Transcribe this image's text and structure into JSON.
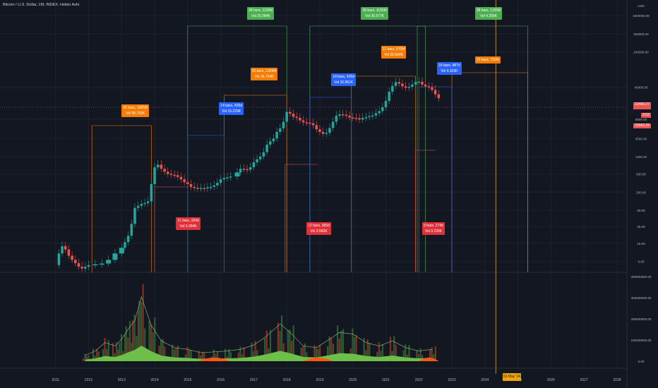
{
  "title": "Bitcoin / U.S. Dollar, 1M, INDEX, Heikin Ashi",
  "colors": {
    "bg": "#131722",
    "grid": "#1e222d",
    "up": "#26a69a",
    "down": "#ef5350",
    "green_box": "#4caf50",
    "red_box": "#e0313b",
    "blue_box": "#2962ff",
    "orange_box": "#f57c00",
    "vol_up": "#2e5a33",
    "vol_down": "#8a2c20",
    "vol_area_green": "#6dbf4a",
    "vol_area_orange": "#ff5a12",
    "cursor": "#d4a43a"
  },
  "axis": {
    "price_unit": "USD",
    "price_ticks": [
      "1500000.00",
      "600000.00",
      "240000.00",
      "40000.00",
      "8000.00",
      "3000.00",
      "1200.00",
      "500.00",
      "200.00",
      "80.00",
      "35.00",
      "15.00",
      "6.00"
    ],
    "price_labels": {
      "current": "BTCUSD",
      "value1": "22400.27",
      "value2": "2:03",
      "value3": "33563.25"
    },
    "volume_ticks": [
      "400000000.00",
      "300000000.00",
      "200000000.00",
      "100000000.00",
      "0.00"
    ],
    "x_ticks": [
      "2011",
      "2012",
      "2013",
      "2014",
      "2015",
      "2016",
      "2017",
      "2018",
      "2019",
      "2020",
      "2021",
      "2022",
      "2023",
      "2024",
      "2025",
      "2026",
      "2027",
      "2028"
    ],
    "cursor_date": "01 May '24"
  },
  "annotations": [
    {
      "kind": "cycle",
      "lines": [
        "38 bars, 1155M",
        "Vol 25.084K"
      ]
    },
    {
      "kind": "cycle",
      "lines": [
        "38 bars, 1155M",
        "Vol 36.677K"
      ]
    },
    {
      "kind": "cycle",
      "lines": [
        "38 bars, 1155M",
        "Vol 4.256K"
      ]
    },
    {
      "kind": "bull",
      "lines": [
        "35 bars, 1065M",
        "Vol 58.732K"
      ]
    },
    {
      "kind": "bull",
      "lines": [
        "33 bars, 1004M",
        "Vol 36.754K"
      ]
    },
    {
      "kind": "bull",
      "lines": [
        "22 bars, 670M",
        "Vol 28.664K"
      ]
    },
    {
      "kind": "bull",
      "lines": [
        "23 bars, 700M"
      ]
    },
    {
      "kind": "acc",
      "lines": [
        "14 bars, 426d",
        "Vol 15.229K"
      ]
    },
    {
      "kind": "acc",
      "lines": [
        "14 bars, 426d",
        "Vol 16.961K"
      ]
    },
    {
      "kind": "acc",
      "lines": [
        "16 bars, 487d",
        "Vol 4.153K"
      ]
    },
    {
      "kind": "bear",
      "lines": [
        "11 bars, 334d",
        "Vol 6.394K"
      ]
    },
    {
      "kind": "bear",
      "lines": [
        "12 bars, 365d",
        "Vol 3.583K"
      ]
    },
    {
      "kind": "bear",
      "lines": [
        "9 bars, 274d",
        "Vol 3.230K"
      ]
    }
  ],
  "chart_data": {
    "type": "line",
    "title": "Bitcoin / U.S. Dollar, 1M, INDEX, Heikin Ashi",
    "y_scale": "log",
    "ylim": [
      4,
      2000000
    ],
    "xlim": [
      2010.6,
      2028.3
    ],
    "series": [
      {
        "name": "BTCUSD",
        "values": [
          [
            2011.0,
            5
          ],
          [
            2011.1,
            9
          ],
          [
            2011.2,
            13
          ],
          [
            2011.3,
            11
          ],
          [
            2011.4,
            8
          ],
          [
            2011.5,
            6.5
          ],
          [
            2011.6,
            5.5
          ],
          [
            2011.7,
            4.6
          ],
          [
            2011.8,
            4.2
          ],
          [
            2011.9,
            4.6
          ],
          [
            2012.0,
            5
          ],
          [
            2012.2,
            5.2
          ],
          [
            2012.4,
            5.4
          ],
          [
            2012.6,
            6.5
          ],
          [
            2012.8,
            9
          ],
          [
            2013.0,
            12
          ],
          [
            2013.1,
            16
          ],
          [
            2013.2,
            22
          ],
          [
            2013.3,
            40
          ],
          [
            2013.4,
            90
          ],
          [
            2013.5,
            100
          ],
          [
            2013.6,
            110
          ],
          [
            2013.7,
            115
          ],
          [
            2013.8,
            125
          ],
          [
            2013.9,
            300
          ],
          [
            2014.0,
            700
          ],
          [
            2014.1,
            800
          ],
          [
            2014.2,
            650
          ],
          [
            2014.3,
            560
          ],
          [
            2014.4,
            500
          ],
          [
            2014.5,
            480
          ],
          [
            2014.6,
            470
          ],
          [
            2014.7,
            430
          ],
          [
            2014.8,
            380
          ],
          [
            2014.9,
            330
          ],
          [
            2015.0,
            300
          ],
          [
            2015.1,
            260
          ],
          [
            2015.2,
            250
          ],
          [
            2015.3,
            240
          ],
          [
            2015.4,
            245
          ],
          [
            2015.5,
            240
          ],
          [
            2015.6,
            255
          ],
          [
            2015.7,
            260
          ],
          [
            2015.8,
            280
          ],
          [
            2015.9,
            320
          ],
          [
            2016.0,
            380
          ],
          [
            2016.1,
            410
          ],
          [
            2016.2,
            420
          ],
          [
            2016.3,
            440
          ],
          [
            2016.5,
            540
          ],
          [
            2016.6,
            650
          ],
          [
            2016.7,
            640
          ],
          [
            2016.8,
            620
          ],
          [
            2016.9,
            700
          ],
          [
            2017.0,
            900
          ],
          [
            2017.1,
            1050
          ],
          [
            2017.2,
            1200
          ],
          [
            2017.3,
            1500
          ],
          [
            2017.4,
            2200
          ],
          [
            2017.5,
            2600
          ],
          [
            2017.6,
            3000
          ],
          [
            2017.7,
            4200
          ],
          [
            2017.8,
            5000
          ],
          [
            2017.9,
            7000
          ],
          [
            2018.0,
            11500
          ],
          [
            2018.1,
            10500
          ],
          [
            2018.2,
            9000
          ],
          [
            2018.3,
            8500
          ],
          [
            2018.4,
            7500
          ],
          [
            2018.5,
            6800
          ],
          [
            2018.6,
            6700
          ],
          [
            2018.7,
            6500
          ],
          [
            2018.8,
            5900
          ],
          [
            2018.9,
            4800
          ],
          [
            2019.0,
            4200
          ],
          [
            2019.1,
            3800
          ],
          [
            2019.2,
            4000
          ],
          [
            2019.3,
            5100
          ],
          [
            2019.4,
            7000
          ],
          [
            2019.5,
            9500
          ],
          [
            2019.6,
            10200
          ],
          [
            2019.7,
            10000
          ],
          [
            2019.8,
            9500
          ],
          [
            2019.9,
            8700
          ],
          [
            2020.0,
            8500
          ],
          [
            2020.1,
            8400
          ],
          [
            2020.2,
            7800
          ],
          [
            2020.3,
            8500
          ],
          [
            2020.4,
            8800
          ],
          [
            2020.5,
            9300
          ],
          [
            2020.6,
            9600
          ],
          [
            2020.7,
            10800
          ],
          [
            2020.8,
            12000
          ],
          [
            2020.9,
            14500
          ],
          [
            2021.0,
            20000
          ],
          [
            2021.1,
            32000
          ],
          [
            2021.2,
            43000
          ],
          [
            2021.3,
            52000
          ],
          [
            2021.4,
            48000
          ],
          [
            2021.5,
            42000
          ],
          [
            2021.6,
            39000
          ],
          [
            2021.7,
            41000
          ],
          [
            2021.8,
            46000
          ],
          [
            2021.9,
            52000
          ],
          [
            2022.0,
            53000
          ],
          [
            2022.1,
            46000
          ],
          [
            2022.2,
            42000
          ],
          [
            2022.3,
            40000
          ],
          [
            2022.4,
            35000
          ],
          [
            2022.5,
            28000
          ],
          [
            2022.6,
            23000
          ]
        ]
      }
    ],
    "volume": {
      "name": "Volume",
      "ylim": [
        0,
        400000000
      ],
      "values": [
        [
          2011.9,
          35000000
        ],
        [
          2012.2,
          60000000
        ],
        [
          2012.5,
          110000000
        ],
        [
          2012.8,
          90000000
        ],
        [
          2013.0,
          130000000
        ],
        [
          2013.2,
          190000000
        ],
        [
          2013.4,
          240000000
        ],
        [
          2013.6,
          380000000
        ],
        [
          2013.9,
          210000000
        ],
        [
          2014.2,
          120000000
        ],
        [
          2014.6,
          80000000
        ],
        [
          2015.0,
          70000000
        ],
        [
          2015.4,
          50000000
        ],
        [
          2015.8,
          55000000
        ],
        [
          2016.2,
          60000000
        ],
        [
          2016.6,
          70000000
        ],
        [
          2017.0,
          95000000
        ],
        [
          2017.4,
          150000000
        ],
        [
          2017.8,
          220000000
        ],
        [
          2018.1,
          170000000
        ],
        [
          2018.5,
          90000000
        ],
        [
          2018.9,
          80000000
        ],
        [
          2019.3,
          130000000
        ],
        [
          2019.6,
          170000000
        ],
        [
          2020.0,
          160000000
        ],
        [
          2020.4,
          110000000
        ],
        [
          2020.8,
          90000000
        ],
        [
          2021.2,
          120000000
        ],
        [
          2021.6,
          80000000
        ],
        [
          2022.0,
          60000000
        ],
        [
          2022.4,
          70000000
        ]
      ]
    }
  }
}
